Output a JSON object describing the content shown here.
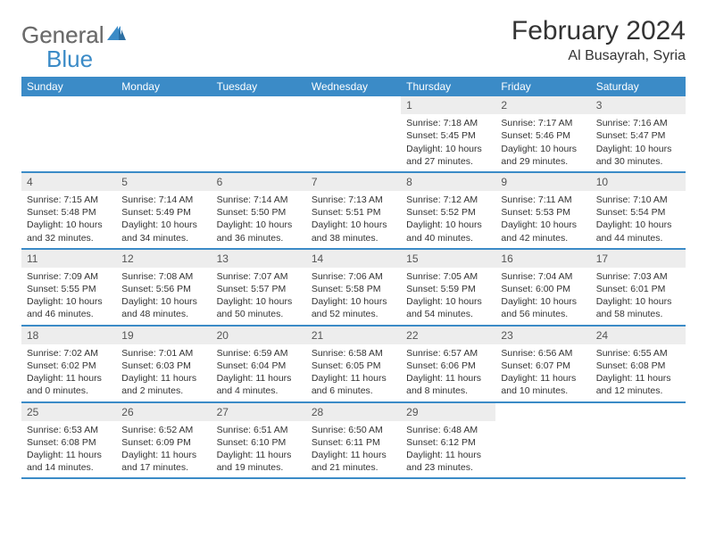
{
  "brand": {
    "part1": "General",
    "part2": "Blue"
  },
  "title": "February 2024",
  "location": "Al Busayrah, Syria",
  "colors": {
    "header_bg": "#3b8bc7",
    "header_text": "#ffffff",
    "daynum_bg": "#ededed",
    "border": "#3b8bc7",
    "text": "#333333",
    "logo_gray": "#6b6b6b",
    "logo_blue": "#3b8bc7"
  },
  "weekdays": [
    "Sunday",
    "Monday",
    "Tuesday",
    "Wednesday",
    "Thursday",
    "Friday",
    "Saturday"
  ],
  "weeks": [
    [
      null,
      null,
      null,
      null,
      {
        "n": "1",
        "sr": "7:18 AM",
        "ss": "5:45 PM",
        "dl": "10 hours and 27 minutes."
      },
      {
        "n": "2",
        "sr": "7:17 AM",
        "ss": "5:46 PM",
        "dl": "10 hours and 29 minutes."
      },
      {
        "n": "3",
        "sr": "7:16 AM",
        "ss": "5:47 PM",
        "dl": "10 hours and 30 minutes."
      }
    ],
    [
      {
        "n": "4",
        "sr": "7:15 AM",
        "ss": "5:48 PM",
        "dl": "10 hours and 32 minutes."
      },
      {
        "n": "5",
        "sr": "7:14 AM",
        "ss": "5:49 PM",
        "dl": "10 hours and 34 minutes."
      },
      {
        "n": "6",
        "sr": "7:14 AM",
        "ss": "5:50 PM",
        "dl": "10 hours and 36 minutes."
      },
      {
        "n": "7",
        "sr": "7:13 AM",
        "ss": "5:51 PM",
        "dl": "10 hours and 38 minutes."
      },
      {
        "n": "8",
        "sr": "7:12 AM",
        "ss": "5:52 PM",
        "dl": "10 hours and 40 minutes."
      },
      {
        "n": "9",
        "sr": "7:11 AM",
        "ss": "5:53 PM",
        "dl": "10 hours and 42 minutes."
      },
      {
        "n": "10",
        "sr": "7:10 AM",
        "ss": "5:54 PM",
        "dl": "10 hours and 44 minutes."
      }
    ],
    [
      {
        "n": "11",
        "sr": "7:09 AM",
        "ss": "5:55 PM",
        "dl": "10 hours and 46 minutes."
      },
      {
        "n": "12",
        "sr": "7:08 AM",
        "ss": "5:56 PM",
        "dl": "10 hours and 48 minutes."
      },
      {
        "n": "13",
        "sr": "7:07 AM",
        "ss": "5:57 PM",
        "dl": "10 hours and 50 minutes."
      },
      {
        "n": "14",
        "sr": "7:06 AM",
        "ss": "5:58 PM",
        "dl": "10 hours and 52 minutes."
      },
      {
        "n": "15",
        "sr": "7:05 AM",
        "ss": "5:59 PM",
        "dl": "10 hours and 54 minutes."
      },
      {
        "n": "16",
        "sr": "7:04 AM",
        "ss": "6:00 PM",
        "dl": "10 hours and 56 minutes."
      },
      {
        "n": "17",
        "sr": "7:03 AM",
        "ss": "6:01 PM",
        "dl": "10 hours and 58 minutes."
      }
    ],
    [
      {
        "n": "18",
        "sr": "7:02 AM",
        "ss": "6:02 PM",
        "dl": "11 hours and 0 minutes."
      },
      {
        "n": "19",
        "sr": "7:01 AM",
        "ss": "6:03 PM",
        "dl": "11 hours and 2 minutes."
      },
      {
        "n": "20",
        "sr": "6:59 AM",
        "ss": "6:04 PM",
        "dl": "11 hours and 4 minutes."
      },
      {
        "n": "21",
        "sr": "6:58 AM",
        "ss": "6:05 PM",
        "dl": "11 hours and 6 minutes."
      },
      {
        "n": "22",
        "sr": "6:57 AM",
        "ss": "6:06 PM",
        "dl": "11 hours and 8 minutes."
      },
      {
        "n": "23",
        "sr": "6:56 AM",
        "ss": "6:07 PM",
        "dl": "11 hours and 10 minutes."
      },
      {
        "n": "24",
        "sr": "6:55 AM",
        "ss": "6:08 PM",
        "dl": "11 hours and 12 minutes."
      }
    ],
    [
      {
        "n": "25",
        "sr": "6:53 AM",
        "ss": "6:08 PM",
        "dl": "11 hours and 14 minutes."
      },
      {
        "n": "26",
        "sr": "6:52 AM",
        "ss": "6:09 PM",
        "dl": "11 hours and 17 minutes."
      },
      {
        "n": "27",
        "sr": "6:51 AM",
        "ss": "6:10 PM",
        "dl": "11 hours and 19 minutes."
      },
      {
        "n": "28",
        "sr": "6:50 AM",
        "ss": "6:11 PM",
        "dl": "11 hours and 21 minutes."
      },
      {
        "n": "29",
        "sr": "6:48 AM",
        "ss": "6:12 PM",
        "dl": "11 hours and 23 minutes."
      },
      null,
      null
    ]
  ],
  "labels": {
    "sunrise": "Sunrise:",
    "sunset": "Sunset:",
    "daylight": "Daylight:"
  }
}
